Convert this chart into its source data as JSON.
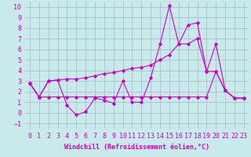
{
  "background_color": "#c8eaea",
  "grid_color": "#a0b8c8",
  "line_color": "#cc00cc",
  "xlim": [
    -0.5,
    23.5
  ],
  "ylim": [
    -1.5,
    10.5
  ],
  "xlabel": "Windchill (Refroidissement éolien,°C)",
  "yticks": [
    -1,
    0,
    1,
    2,
    3,
    4,
    5,
    6,
    7,
    8,
    9,
    10
  ],
  "xticks": [
    0,
    1,
    2,
    3,
    4,
    5,
    6,
    7,
    8,
    9,
    10,
    11,
    12,
    13,
    14,
    15,
    16,
    17,
    18,
    19,
    20,
    21,
    22,
    23
  ],
  "line1_x": [
    0,
    1,
    2,
    3,
    4,
    5,
    6,
    7,
    8,
    9,
    10,
    11,
    12,
    13,
    14,
    15,
    16,
    17,
    18,
    19,
    20,
    21,
    22,
    23
  ],
  "line1_y": [
    2.8,
    1.5,
    3.0,
    3.1,
    0.7,
    -0.2,
    0.1,
    1.4,
    1.2,
    0.9,
    3.0,
    1.0,
    1.0,
    3.3,
    6.5,
    10.1,
    6.5,
    8.3,
    8.5,
    3.9,
    6.5,
    2.1,
    1.4,
    1.4
  ],
  "line2_x": [
    0,
    1,
    2,
    3,
    4,
    5,
    6,
    7,
    8,
    9,
    10,
    11,
    12,
    13,
    14,
    15,
    16,
    17,
    18,
    19,
    20,
    21,
    22,
    23
  ],
  "line2_y": [
    2.8,
    1.5,
    3.0,
    3.1,
    3.2,
    3.2,
    3.3,
    3.5,
    3.7,
    3.8,
    4.0,
    4.2,
    4.3,
    4.5,
    5.0,
    5.5,
    6.5,
    6.5,
    7.0,
    3.9,
    3.9,
    2.1,
    1.4,
    1.4
  ],
  "line3_x": [
    0,
    1,
    2,
    3,
    4,
    5,
    6,
    7,
    8,
    9,
    10,
    11,
    12,
    13,
    14,
    15,
    16,
    17,
    18,
    19,
    20,
    21,
    22,
    23
  ],
  "line3_y": [
    2.8,
    1.5,
    1.5,
    1.5,
    1.5,
    1.5,
    1.5,
    1.5,
    1.5,
    1.5,
    1.5,
    1.5,
    1.5,
    1.5,
    1.5,
    1.5,
    1.5,
    1.5,
    1.5,
    1.5,
    3.9,
    2.1,
    1.4,
    1.4
  ],
  "font_family": "monospace",
  "xlabel_fontsize": 6,
  "tick_fontsize": 6,
  "lw": 0.8,
  "ms": 1.8
}
